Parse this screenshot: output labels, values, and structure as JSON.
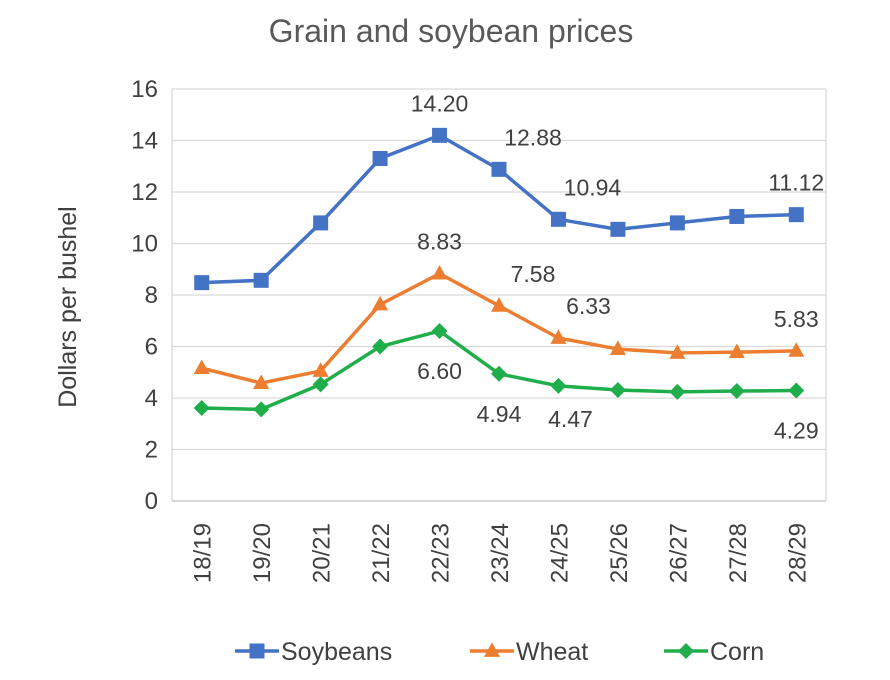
{
  "chart_data": {
    "type": "line",
    "title": "Grain and soybean prices",
    "xlabel": "",
    "ylabel": "Dollars per bushel",
    "categories": [
      "18/19",
      "19/20",
      "20/21",
      "21/22",
      "22/23",
      "23/24",
      "24/25",
      "25/26",
      "26/27",
      "27/28",
      "28/29"
    ],
    "ylim": [
      0,
      16
    ],
    "yticks": [
      0,
      2,
      4,
      6,
      8,
      10,
      12,
      14,
      16
    ],
    "grid": true,
    "legend_position": "bottom",
    "series": [
      {
        "name": "Soybeans",
        "color": "#4472C4",
        "marker": "square",
        "values": [
          8.48,
          8.57,
          10.8,
          13.3,
          14.2,
          12.88,
          10.94,
          10.55,
          10.8,
          11.05,
          11.12
        ],
        "data_labels": [
          {
            "index": 4,
            "text": "14.20"
          },
          {
            "index": 5,
            "text": "12.88"
          },
          {
            "index": 6,
            "text": "10.94"
          },
          {
            "index": 10,
            "text": "11.12"
          }
        ]
      },
      {
        "name": "Wheat",
        "color": "#ED7D31",
        "marker": "triangle",
        "values": [
          5.16,
          4.58,
          5.05,
          7.63,
          8.83,
          7.58,
          6.33,
          5.9,
          5.75,
          5.78,
          5.83
        ],
        "data_labels": [
          {
            "index": 4,
            "text": "8.83"
          },
          {
            "index": 5,
            "text": "7.58"
          },
          {
            "index": 6,
            "text": "6.33"
          },
          {
            "index": 10,
            "text": "5.83"
          }
        ]
      },
      {
        "name": "Corn",
        "color": "#1FAE4B",
        "marker": "diamond",
        "values": [
          3.61,
          3.56,
          4.53,
          6.0,
          6.6,
          4.94,
          4.47,
          4.31,
          4.24,
          4.27,
          4.29
        ],
        "data_labels": [
          {
            "index": 4,
            "text": "6.60"
          },
          {
            "index": 5,
            "text": "4.94"
          },
          {
            "index": 6,
            "text": "4.47"
          },
          {
            "index": 10,
            "text": "4.29"
          }
        ]
      }
    ]
  }
}
